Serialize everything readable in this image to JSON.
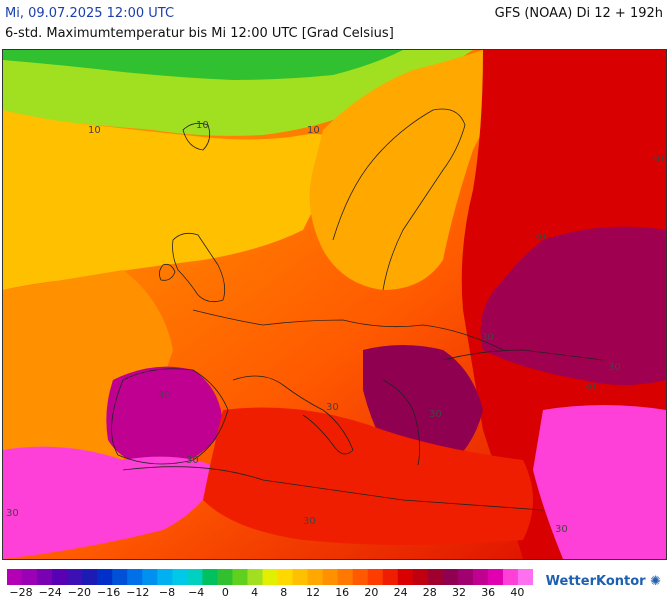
{
  "header": {
    "date": "Mi, 09.07.2025 12:00 UTC",
    "model": "GFS (NOAA) Di 12 + 192h",
    "description": "6-std. Maximumtemperatur bis Mi 12:00 UTC [Grad Celsius]"
  },
  "legend": {
    "ticks": [
      "−28",
      "−24",
      "−20",
      "−16",
      "−12",
      "−8",
      "−4",
      "0",
      "4",
      "8",
      "12",
      "16",
      "20",
      "24",
      "28",
      "32",
      "36",
      "40"
    ],
    "colors": [
      "#b400b4",
      "#9a00b4",
      "#7a00b4",
      "#5a00b4",
      "#3c10b4",
      "#1c1cb4",
      "#0030c8",
      "#0050d8",
      "#0070e8",
      "#0090f0",
      "#00b0f0",
      "#00c8e8",
      "#00d0c0",
      "#00c060",
      "#30c030",
      "#60d020",
      "#a0e020",
      "#e0f000",
      "#ffd800",
      "#ffc000",
      "#ffa800",
      "#ff9000",
      "#ff7800",
      "#ff5a00",
      "#ff3c00",
      "#f01e00",
      "#d80000",
      "#c00010",
      "#a00030",
      "#900050",
      "#a00070",
      "#c00090",
      "#e000b0",
      "#ff40d8",
      "#ff70f0"
    ]
  },
  "map_labels": [
    "10",
    "10",
    "10",
    "30",
    "30",
    "30",
    "30",
    "30",
    "30",
    "30",
    "30",
    "30",
    "30",
    "30",
    "30"
  ],
  "brand": {
    "name": "WetterKontor",
    "icon": "sun-spark-icon"
  }
}
